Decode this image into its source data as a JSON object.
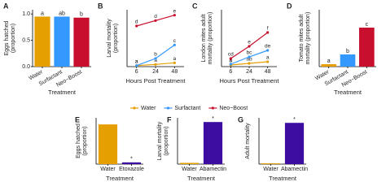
{
  "chart_data": [
    {
      "panel": "A",
      "type": "bar",
      "ylabel": [
        "Eggs hatched",
        "(proportion)"
      ],
      "xlabel": "Treatment",
      "categories": [
        "Water",
        "Surfactant",
        "Neo−Boost"
      ],
      "values": [
        0.95,
        0.95,
        0.93
      ],
      "colors": [
        "#E69F00",
        "#3399FF",
        "#C8102E"
      ],
      "annotations": [
        "a",
        "ab",
        "b"
      ],
      "ylim": [
        0,
        1.08
      ],
      "yticks": [
        {
          "value": 0,
          "label": "0.0"
        },
        {
          "value": 0.5,
          "label": "0.5"
        },
        {
          "value": 1,
          "label": "1.0"
        }
      ],
      "rotate_labels": true
    },
    {
      "panel": "B",
      "type": "line",
      "ylabel": [
        "Larval mortality",
        "(proportion)"
      ],
      "xlabel": "Hours Post Treatment",
      "categories": [
        "6",
        "24",
        "48"
      ],
      "ylim": [
        0,
        1.05
      ],
      "legend": true,
      "series": [
        {
          "name": "Water",
          "color": "#E69F00",
          "values": [
            0.02,
            0.04,
            0.07
          ],
          "annotations": [
            "a",
            "a",
            "a"
          ]
        },
        {
          "name": "Surfactant",
          "color": "#3399FF",
          "values": [
            0.02,
            0.15,
            0.4
          ],
          "annotations": [
            "a",
            "b",
            "c"
          ]
        },
        {
          "name": "Neo−Boost",
          "color": "#C8102E",
          "values": [
            0.75,
            0.85,
            0.95
          ],
          "annotations": [
            "d",
            "d",
            "e"
          ]
        }
      ]
    },
    {
      "panel": "C",
      "type": "line",
      "ylabel": [
        "London mites adult",
        "mortality (proportion)"
      ],
      "xlabel": "Hours Post Treatment",
      "categories": [
        "6",
        "24",
        "48"
      ],
      "ylim": [
        0,
        0.7
      ],
      "series": [
        {
          "name": "Water",
          "color": "#E69F00",
          "values": [
            0.02,
            0.04,
            0.06
          ],
          "annotations": [
            "a",
            "ab",
            "a"
          ]
        },
        {
          "name": "Surfactant",
          "color": "#3399FF",
          "values": [
            0.03,
            0.12,
            0.2
          ],
          "annotations": [
            "a",
            "bc",
            "de"
          ]
        },
        {
          "name": "Neo−Boost",
          "color": "#C8102E",
          "values": [
            0.1,
            0.25,
            0.42
          ],
          "annotations": [
            "cd",
            "e",
            "f"
          ]
        }
      ]
    },
    {
      "panel": "D",
      "type": "bar",
      "ylabel": [
        "Tomato mites adult",
        "mortality (proportion)"
      ],
      "xlabel": "Treatment",
      "categories": [
        "Water",
        "Surfactant",
        "Neo−Boost"
      ],
      "values": [
        0.03,
        0.15,
        0.48
      ],
      "colors": [
        "#E69F00",
        "#3399FF",
        "#C8102E"
      ],
      "annotations": [
        "a",
        "b",
        "c"
      ],
      "ylim": [
        0,
        0.7
      ],
      "rotate_labels": true
    },
    {
      "panel": "E",
      "type": "bar",
      "ylabel": [
        "Eggs hatched",
        "(proportion)"
      ],
      "xlabel": "Treatment",
      "categories": [
        "Water",
        "Etoxazole"
      ],
      "values": [
        0.9,
        0.04
      ],
      "colors": [
        "#E69F00",
        "#3D0CA0"
      ],
      "annotations": [
        null,
        "*"
      ],
      "ylim": [
        0,
        1.05
      ]
    },
    {
      "panel": "F",
      "type": "bar",
      "ylabel": [
        "Larval mortality",
        "(proportion)"
      ],
      "xlabel": "Treatment",
      "categories": [
        "Water",
        "Abamectin"
      ],
      "values": [
        0.03,
        1.0
      ],
      "colors": [
        "#E69F00",
        "#3D0CA0"
      ],
      "annotations": [
        null,
        "*"
      ],
      "ylim": [
        0,
        1.1
      ]
    },
    {
      "panel": "G",
      "type": "bar",
      "ylabel": [
        "Adult mortality"
      ],
      "xlabel": "Treatment",
      "categories": [
        "Water",
        "Abamectin"
      ],
      "values": [
        0.02,
        0.98
      ],
      "colors": [
        "#E69F00",
        "#3D0CA0"
      ],
      "annotations": [
        null,
        "*"
      ],
      "ylim": [
        0,
        1.1
      ]
    }
  ]
}
